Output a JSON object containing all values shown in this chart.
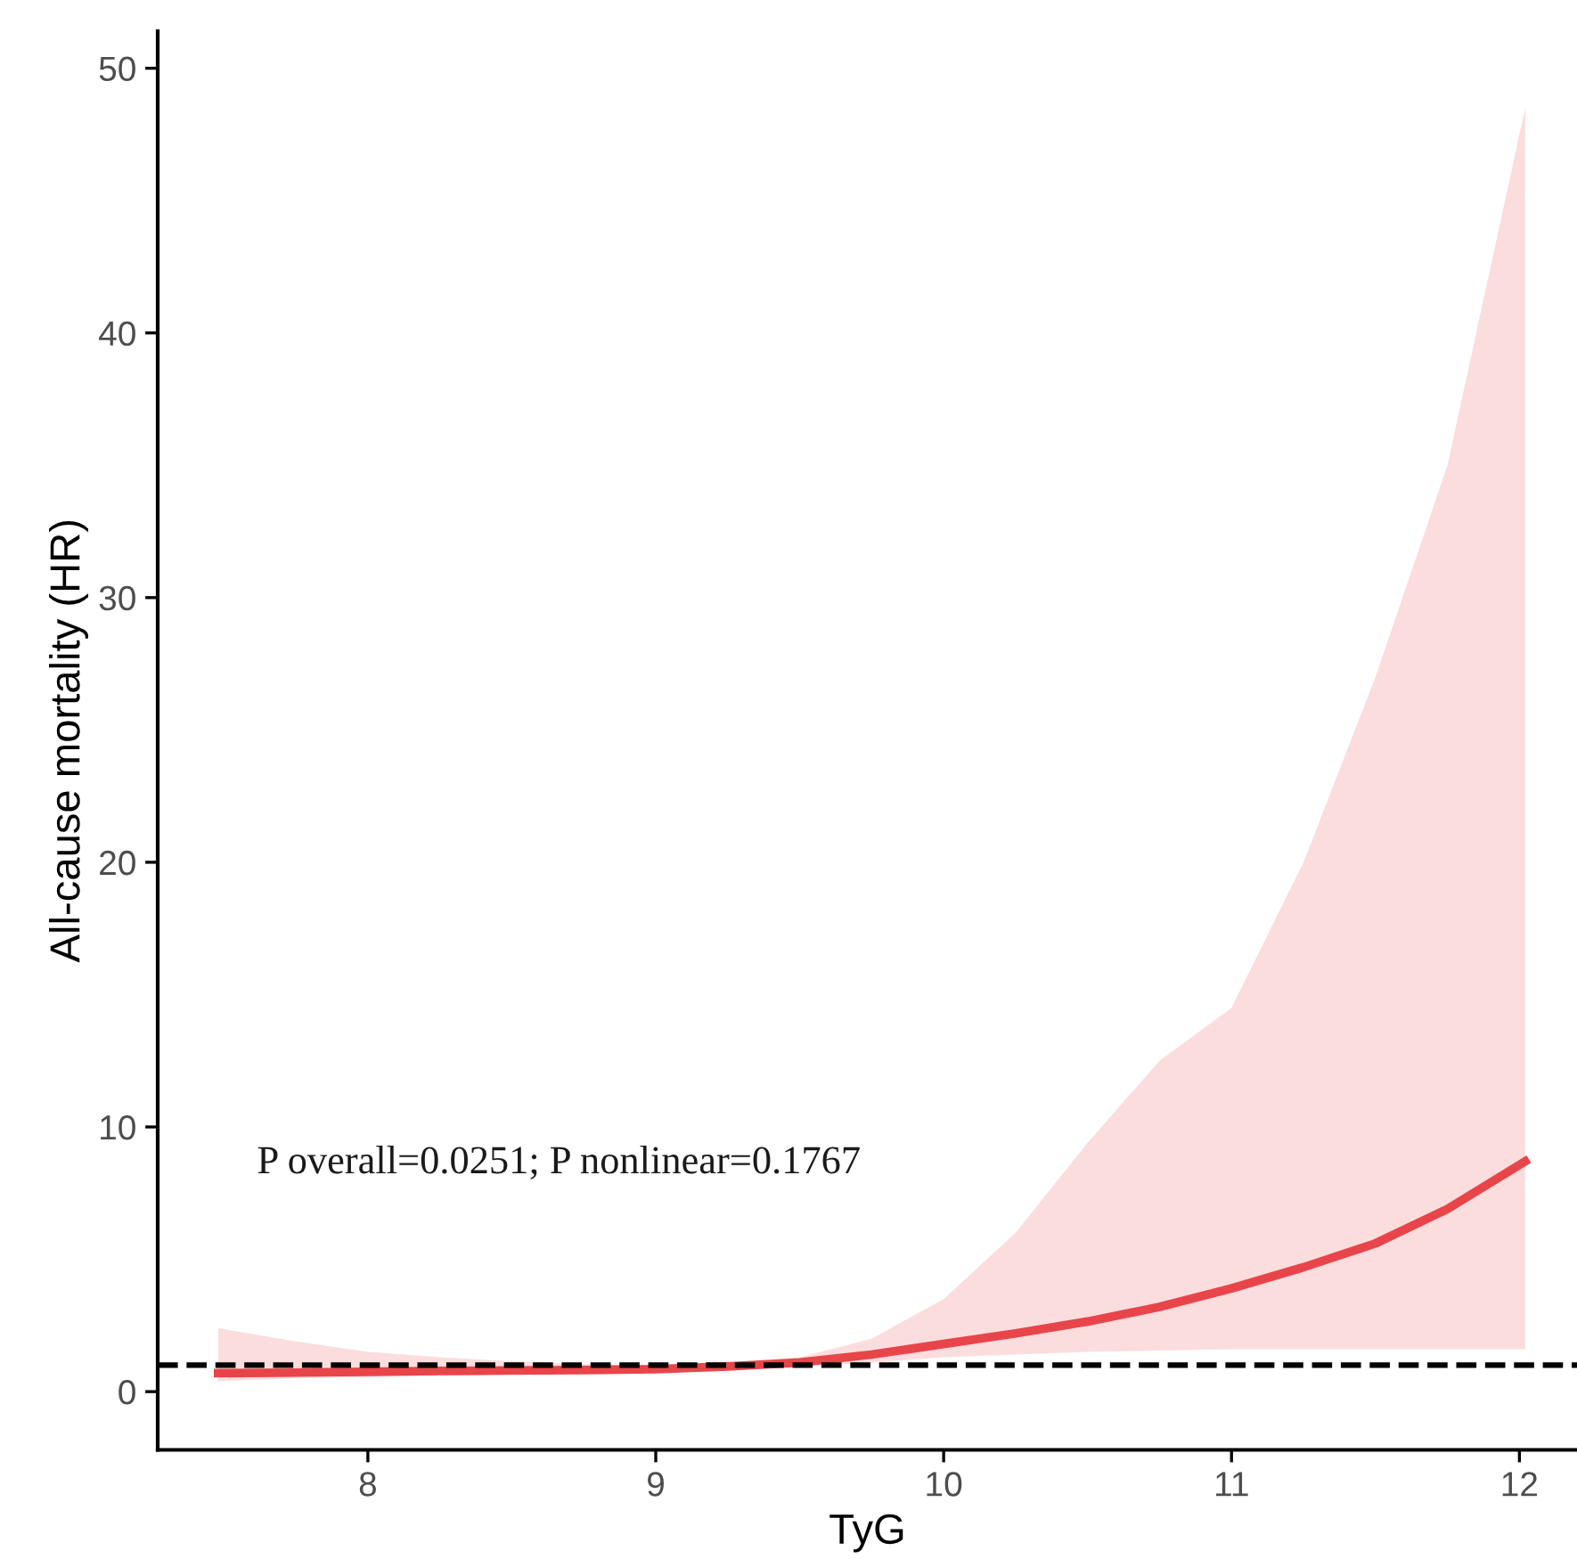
{
  "chart_data": {
    "type": "line",
    "xlabel": "TyG",
    "ylabel": "All-cause mortality (HR)",
    "x": [
      7.48,
      7.75,
      8.0,
      8.25,
      8.5,
      8.75,
      9.0,
      9.25,
      9.5,
      9.75,
      10.0,
      10.25,
      10.5,
      10.75,
      11.0,
      11.25,
      11.5,
      11.75,
      12.02
    ],
    "series": [
      {
        "color": "#e8454a",
        "values": [
          0.7,
          0.72,
          0.75,
          0.78,
          0.8,
          0.82,
          0.85,
          0.95,
          1.1,
          1.4,
          1.8,
          2.2,
          2.65,
          3.2,
          3.9,
          4.7,
          5.6,
          6.9,
          8.7
        ],
        "lower": [
          0.4,
          0.5,
          0.55,
          0.6,
          0.65,
          0.7,
          0.75,
          0.85,
          0.95,
          1.1,
          1.3,
          1.4,
          1.5,
          1.55,
          1.6,
          1.6,
          1.6,
          1.6,
          1.6
        ],
        "upper": [
          2.4,
          1.9,
          1.5,
          1.3,
          1.15,
          1.05,
          1.0,
          1.05,
          1.3,
          2.0,
          3.5,
          6.0,
          9.4,
          12.5,
          14.5,
          20,
          27,
          35,
          48.5
        ]
      }
    ],
    "xlim": [
      7.27,
      12.2
    ],
    "ylim": [
      -2.2,
      51.4
    ],
    "xticks": [
      8,
      9,
      10,
      11,
      12
    ],
    "yticks": [
      0,
      10,
      20,
      30,
      40,
      50
    ],
    "ref_lines": [
      {
        "axis": "y",
        "value": 1,
        "color": "#000000",
        "line_style": "dashed"
      }
    ],
    "annotations": [
      "P overall=0.0251; P nonlinear=0.1767"
    ],
    "grid": false,
    "line_style": "solid",
    "marker": "none"
  }
}
